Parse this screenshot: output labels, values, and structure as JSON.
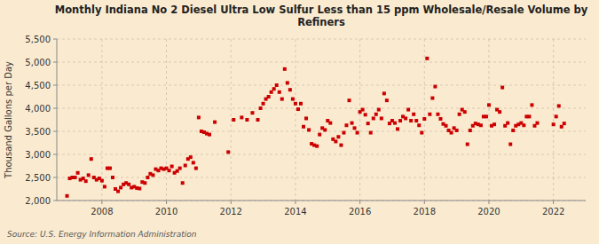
{
  "chart_data": {
    "type": "scatter",
    "title": "Monthly Indiana No 2 Diesel Ultra Low Sulfur Less than 15 ppm Wholesale/Resale Volume by\nRefiners",
    "ylabel": "Thousand Gallons per Day",
    "source": "Source: U.S. Energy Information Administration",
    "color": "#cc0000",
    "marker": "square",
    "grid": true,
    "xlim": [
      2006.6,
      2023.0
    ],
    "xticks": [
      2008,
      2010,
      2012,
      2014,
      2016,
      2018,
      2020,
      2022
    ],
    "ylim": [
      2000,
      5500
    ],
    "yticks": [
      {
        "value": 2000,
        "label": "2,000"
      },
      {
        "value": 2500,
        "label": "2,500"
      },
      {
        "value": 3000,
        "label": "3,000"
      },
      {
        "value": 3500,
        "label": "3,500"
      },
      {
        "value": 4000,
        "label": "4,000"
      },
      {
        "value": 4500,
        "label": "4,500"
      },
      {
        "value": 5000,
        "label": "5,000"
      },
      {
        "value": 5500,
        "label": "5,500"
      }
    ],
    "x": [
      2006.917,
      2007.0,
      2007.083,
      2007.167,
      2007.25,
      2007.333,
      2007.417,
      2007.5,
      2007.583,
      2007.667,
      2007.75,
      2007.833,
      2007.917,
      2008.0,
      2008.083,
      2008.167,
      2008.25,
      2008.333,
      2008.417,
      2008.5,
      2008.583,
      2008.667,
      2008.75,
      2008.833,
      2008.917,
      2009.0,
      2009.083,
      2009.167,
      2009.25,
      2009.333,
      2009.417,
      2009.5,
      2009.583,
      2009.667,
      2009.75,
      2009.833,
      2009.917,
      2010.0,
      2010.083,
      2010.167,
      2010.25,
      2010.333,
      2010.417,
      2010.5,
      2010.583,
      2010.667,
      2010.75,
      2010.833,
      2010.917,
      2011.0,
      2011.083,
      2011.167,
      2011.25,
      2011.333,
      2011.5,
      2011.917,
      2012.083,
      2012.333,
      2012.5,
      2012.667,
      2012.833,
      2012.917,
      2013.0,
      2013.083,
      2013.167,
      2013.25,
      2013.333,
      2013.417,
      2013.5,
      2013.583,
      2013.667,
      2013.75,
      2013.833,
      2013.917,
      2014.0,
      2014.083,
      2014.167,
      2014.25,
      2014.333,
      2014.417,
      2014.5,
      2014.583,
      2014.667,
      2014.75,
      2014.833,
      2014.917,
      2015.0,
      2015.083,
      2015.167,
      2015.25,
      2015.333,
      2015.417,
      2015.5,
      2015.583,
      2015.667,
      2015.75,
      2015.833,
      2015.917,
      2016.0,
      2016.083,
      2016.167,
      2016.25,
      2016.333,
      2016.417,
      2016.5,
      2016.583,
      2016.667,
      2016.75,
      2016.833,
      2016.917,
      2017.0,
      2017.083,
      2017.167,
      2017.25,
      2017.333,
      2017.417,
      2017.5,
      2017.583,
      2017.667,
      2017.75,
      2017.833,
      2017.917,
      2018.0,
      2018.083,
      2018.167,
      2018.25,
      2018.333,
      2018.417,
      2018.5,
      2018.583,
      2018.667,
      2018.75,
      2018.833,
      2018.917,
      2019.0,
      2019.083,
      2019.167,
      2019.25,
      2019.333,
      2019.417,
      2019.5,
      2019.583,
      2019.667,
      2019.75,
      2019.833,
      2019.917,
      2020.0,
      2020.083,
      2020.167,
      2020.25,
      2020.333,
      2020.417,
      2020.5,
      2020.583,
      2020.667,
      2020.75,
      2020.833,
      2020.917,
      2021.0,
      2021.083,
      2021.167,
      2021.25,
      2021.333,
      2021.417,
      2021.5,
      2022.0,
      2022.083,
      2022.167,
      2022.25,
      2022.333
    ],
    "values": [
      2100,
      2480,
      2500,
      2500,
      2600,
      2450,
      2480,
      2420,
      2550,
      2900,
      2500,
      2450,
      2480,
      2430,
      2300,
      2700,
      2700,
      2500,
      2250,
      2200,
      2280,
      2350,
      2380,
      2350,
      2280,
      2300,
      2270,
      2260,
      2400,
      2380,
      2500,
      2580,
      2550,
      2680,
      2650,
      2700,
      2680,
      2700,
      2650,
      2740,
      2600,
      2640,
      2700,
      2380,
      2760,
      2900,
      2940,
      2820,
      2700,
      3800,
      3500,
      3480,
      3450,
      3430,
      3700,
      3050,
      3750,
      3800,
      3750,
      3900,
      3750,
      4000,
      4100,
      4200,
      4250,
      4350,
      4420,
      4500,
      4350,
      4200,
      4850,
      4550,
      4400,
      4200,
      4100,
      3980,
      4100,
      3600,
      3780,
      3530,
      3230,
      3200,
      3180,
      3430,
      3570,
      3530,
      3730,
      3680,
      3330,
      3280,
      3380,
      3200,
      3470,
      3630,
      4170,
      3680,
      3570,
      3470,
      3920,
      3970,
      3860,
      3670,
      3470,
      3780,
      3870,
      3970,
      3780,
      4320,
      4170,
      3670,
      3730,
      3680,
      3550,
      3730,
      3820,
      3780,
      3970,
      3730,
      3870,
      3730,
      3630,
      3470,
      3770,
      5080,
      3870,
      4220,
      4470,
      3870,
      3770,
      3660,
      3620,
      3520,
      3470,
      3570,
      3520,
      3870,
      3970,
      3920,
      3220,
      3520,
      3620,
      3670,
      3650,
      3630,
      3820,
      3820,
      4070,
      3620,
      3650,
      3970,
      3920,
      4450,
      3620,
      3680,
      3220,
      3520,
      3620,
      3650,
      3680,
      3630,
      3820,
      3820,
      4070,
      3620,
      3680,
      3650,
      3820,
      4050,
      3600,
      3670
    ]
  }
}
